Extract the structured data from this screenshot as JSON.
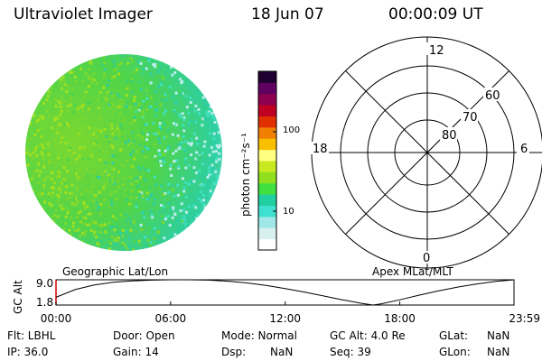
{
  "header": {
    "instrument": "Ultraviolet Imager",
    "date": "18 Jun 07",
    "time": "00:00:09 UT"
  },
  "colorbar": {
    "label": "photon cm⁻²s⁻¹",
    "ticks": [
      "100",
      "10"
    ],
    "colors": [
      "#ffffff",
      "#d8f0f0",
      "#a0e8e8",
      "#40e0d0",
      "#20d0a0",
      "#40e040",
      "#90e020",
      "#c8e820",
      "#ffff80",
      "#f8c000",
      "#f08000",
      "#e03000",
      "#c00020",
      "#900050",
      "#600060",
      "#200030"
    ]
  },
  "polar_plot": {
    "mlt_labels": {
      "top": "12",
      "left": "18",
      "right": "6",
      "bottom": "0"
    },
    "lat_labels": [
      "60",
      "70",
      "80"
    ]
  },
  "alt_plot": {
    "title_left": "Geographic Lat/Lon",
    "title_right": "Apex MLat/MLT",
    "ylabel": "GC Alt",
    "yticks": [
      "9.0",
      "1.8"
    ],
    "xticks": [
      "00:00",
      "06:00",
      "12:00",
      "18:00",
      "23:59"
    ]
  },
  "chart_data": {
    "type": "line",
    "title": "",
    "xlabel": "",
    "ylabel": "GC Alt",
    "x": [
      0,
      1,
      2,
      3,
      4,
      5,
      6,
      7,
      8,
      9,
      10,
      11,
      12,
      13,
      14,
      15,
      16,
      16.6,
      17,
      18,
      19,
      20,
      21,
      22,
      23,
      23.98
    ],
    "series": [
      {
        "values": [
          4.0,
          6.2,
          7.5,
          8.3,
          8.7,
          8.9,
          9.0,
          9.0,
          8.9,
          8.6,
          8.1,
          7.4,
          6.5,
          5.5,
          4.4,
          3.3,
          2.3,
          1.8,
          2.1,
          3.3,
          4.6,
          5.8,
          6.9,
          7.8,
          8.5,
          9.0
        ]
      }
    ],
    "xlim": [
      0,
      23.98
    ],
    "ylim": [
      1.8,
      9.0
    ]
  },
  "info": {
    "flt": "Flt: LBHL",
    "door": "Door: Open",
    "mode": "Mode: Normal",
    "gc_alt": "GC Alt: 4.0 Re",
    "glat_label": "GLat:",
    "glat_val": "NaN",
    "ip": "IP: 36.0",
    "gain": "Gain: 14",
    "dsp_label": "Dsp:",
    "dsp_val": "NaN",
    "seq": "Seq: 39",
    "glon_label": "GLon:",
    "glon_val": "NaN"
  }
}
